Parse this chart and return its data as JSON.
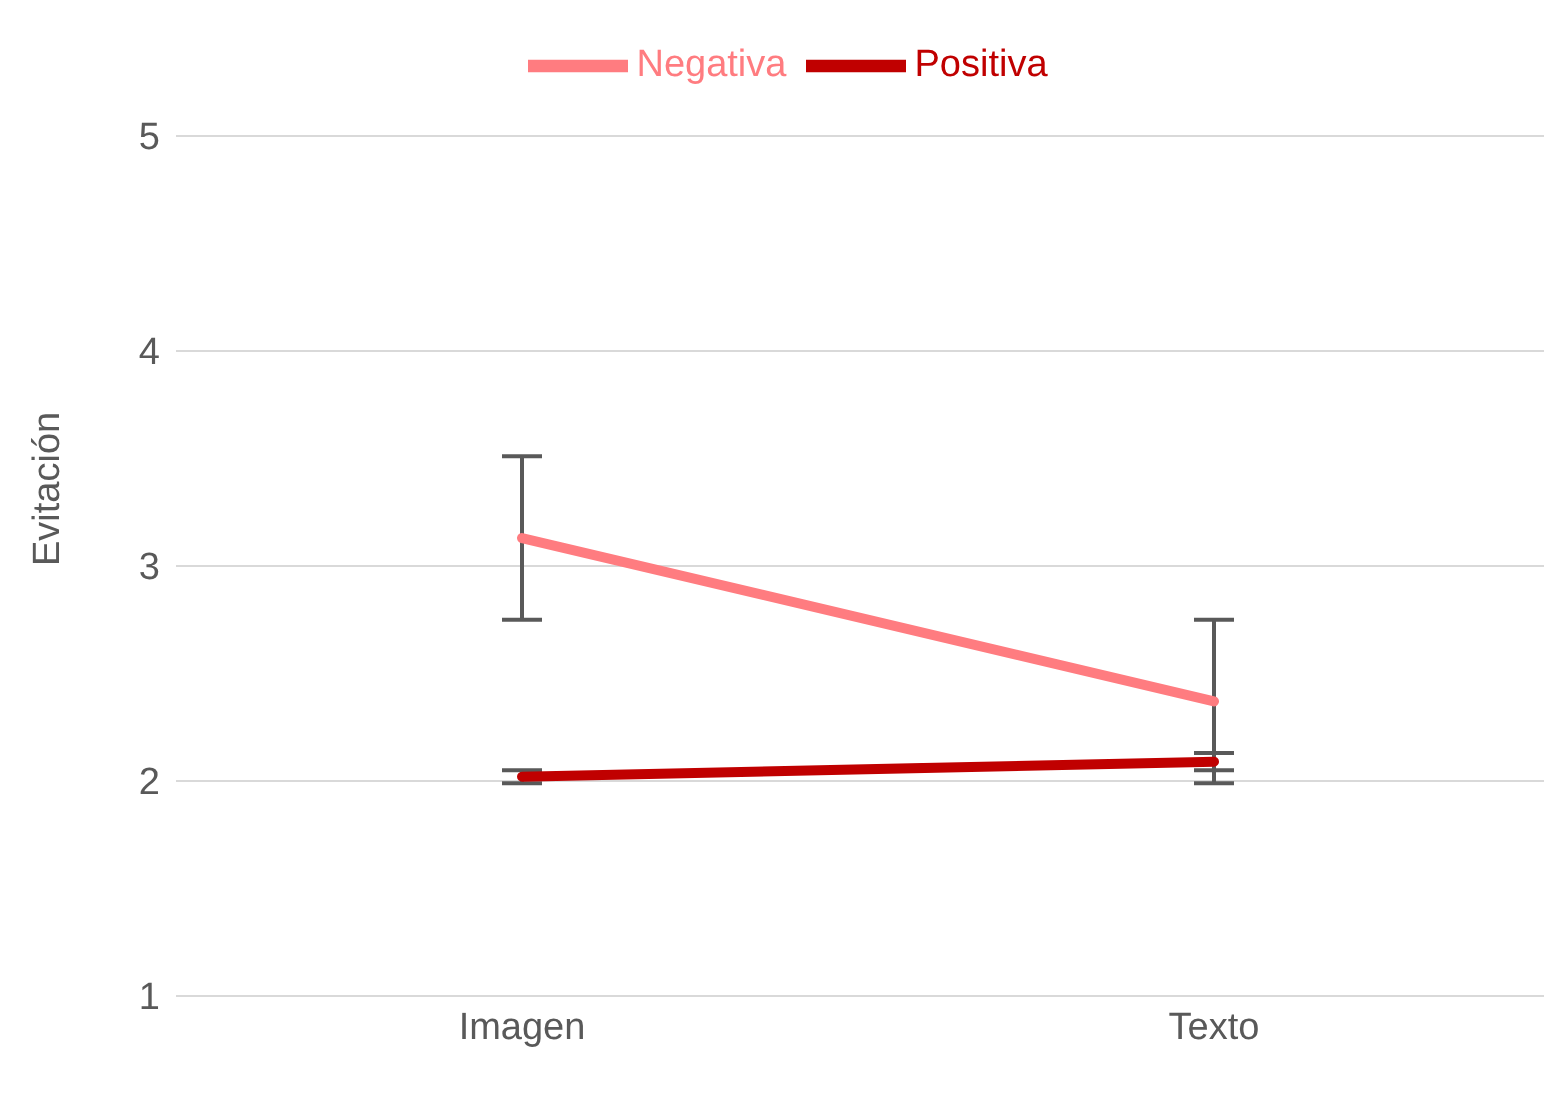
{
  "chart_data": {
    "type": "line",
    "ylabel": "Evitación",
    "categories": [
      "Imagen",
      "Texto"
    ],
    "series": [
      {
        "name": "Negativa",
        "color": "#ff7c80",
        "values": [
          3.13,
          2.37
        ],
        "errors": [
          0.38,
          0.38
        ]
      },
      {
        "name": "Positiva",
        "color": "#c00000",
        "values": [
          2.02,
          2.09
        ],
        "errors": [
          0.03,
          0.04
        ]
      }
    ],
    "ylim": [
      1,
      5
    ],
    "yticks": [
      1,
      2,
      3,
      4,
      5
    ],
    "grid": "y",
    "legend": "top",
    "marker": "none",
    "line_style": "solid"
  }
}
